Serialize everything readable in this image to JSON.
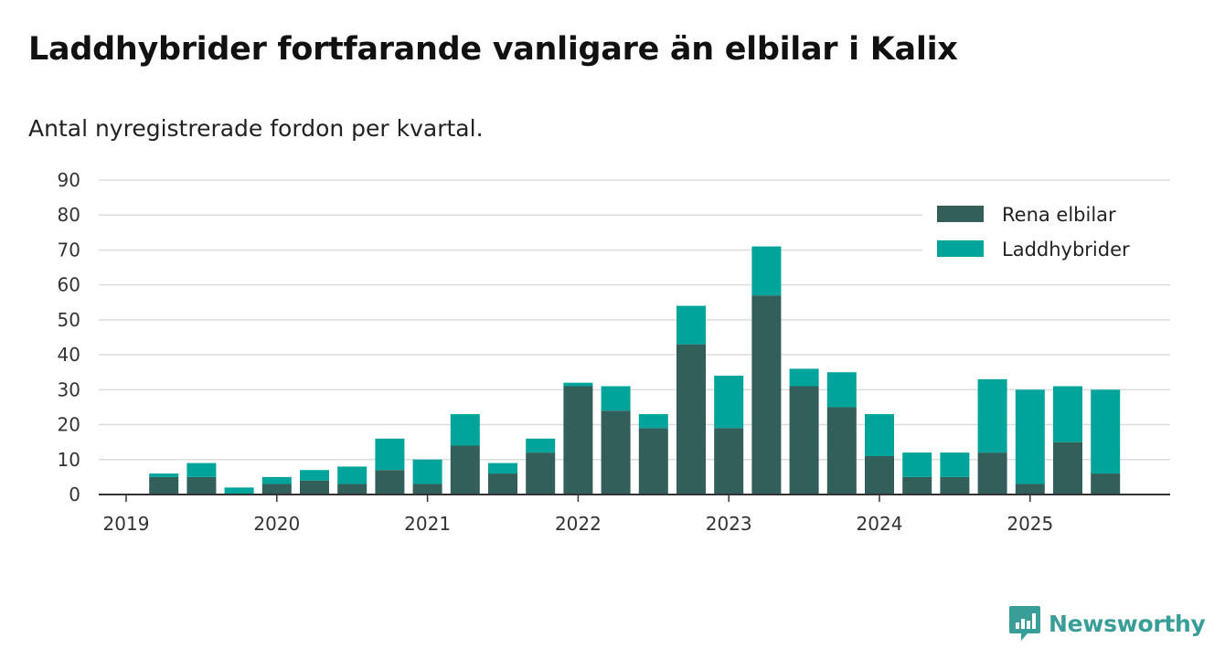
{
  "title": "Laddhybrider fortfarande vanligare än elbilar i Kalix",
  "subtitle": "Antal nyregistrerade fordon per kvartal.",
  "brand": "Newsworthy",
  "colors": {
    "rena_elbilar": "#335f5b",
    "laddhybrider": "#00a49a",
    "grid": "#dddddd",
    "axis": "#333333",
    "brand": "#3a9e98"
  },
  "chart_data": {
    "type": "bar",
    "stacked": true,
    "title": "Laddhybrider fortfarande vanligare än elbilar i Kalix",
    "subtitle": "Antal nyregistrerade fordon per kvartal.",
    "xlabel": "",
    "ylabel": "",
    "ylim": [
      0,
      90
    ],
    "yticks": [
      0,
      10,
      20,
      30,
      40,
      50,
      60,
      70,
      80,
      90
    ],
    "xticks": [
      "2019",
      "2020",
      "2021",
      "2022",
      "2023",
      "2024",
      "2025"
    ],
    "grid": true,
    "legend_position": "top-right",
    "categories": [
      "2019 Q1",
      "2019 Q2",
      "2019 Q3",
      "2019 Q4",
      "2020 Q1",
      "2020 Q2",
      "2020 Q3",
      "2020 Q4",
      "2021 Q1",
      "2021 Q2",
      "2021 Q3",
      "2021 Q4",
      "2022 Q1",
      "2022 Q2",
      "2022 Q3",
      "2022 Q4",
      "2023 Q1",
      "2023 Q2",
      "2023 Q3",
      "2023 Q4",
      "2024 Q1",
      "2024 Q2",
      "2024 Q3",
      "2024 Q4",
      "2025 Q1",
      "2025 Q2",
      "2025 Q3"
    ],
    "series": [
      {
        "name": "Rena elbilar",
        "values": [
          0,
          5,
          5,
          0,
          3,
          4,
          3,
          7,
          3,
          14,
          6,
          12,
          31,
          24,
          19,
          43,
          19,
          57,
          31,
          25,
          11,
          5,
          5,
          12,
          3,
          15,
          6
        ]
      },
      {
        "name": "Laddhybrider",
        "values": [
          0,
          1,
          4,
          2,
          2,
          3,
          5,
          9,
          7,
          9,
          3,
          4,
          1,
          7,
          4,
          11,
          15,
          14,
          5,
          10,
          12,
          7,
          7,
          21,
          27,
          16,
          24
        ]
      }
    ]
  }
}
